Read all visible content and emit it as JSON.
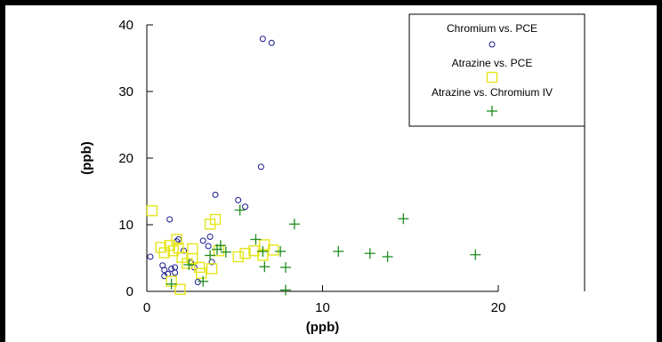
{
  "chart_data": {
    "type": "scatter",
    "title": "",
    "xlabel": "(ppb)",
    "ylabel": "(ppb)",
    "xlim": [
      0,
      20
    ],
    "ylim": [
      0,
      40
    ],
    "x_ticks": [
      "0",
      "10",
      "20"
    ],
    "y_ticks": [
      "0",
      "10",
      "20",
      "30",
      "40"
    ],
    "grid": false,
    "legend_position": "top-right",
    "series": [
      {
        "name": "Chromium vs. PCE",
        "marker": "circle",
        "color": "#1a1a8c",
        "points": [
          [
            0.2,
            5.2
          ],
          [
            0.9,
            3.9
          ],
          [
            1.0,
            3.2
          ],
          [
            1.0,
            2.3
          ],
          [
            1.2,
            2.6
          ],
          [
            1.3,
            10.8
          ],
          [
            1.4,
            3.4
          ],
          [
            1.6,
            3.6
          ],
          [
            1.6,
            2.8
          ],
          [
            1.7,
            7.5
          ],
          [
            1.8,
            7.8
          ],
          [
            2.1,
            6.1
          ],
          [
            2.5,
            4.3
          ],
          [
            2.7,
            3.6
          ],
          [
            2.9,
            1.4
          ],
          [
            3.2,
            7.6
          ],
          [
            3.5,
            6.8
          ],
          [
            3.6,
            8.2
          ],
          [
            3.7,
            4.4
          ],
          [
            3.9,
            14.5
          ],
          [
            5.2,
            13.7
          ],
          [
            5.6,
            12.7
          ],
          [
            6.5,
            18.7
          ],
          [
            6.6,
            37.9
          ],
          [
            7.1,
            37.3
          ]
        ]
      },
      {
        "name": "Atrazine vs. PCE",
        "marker": "square",
        "color": "#e5e51a",
        "points": [
          [
            0.3,
            12.1
          ],
          [
            0.8,
            6.6
          ],
          [
            1.0,
            5.8
          ],
          [
            1.3,
            6.9
          ],
          [
            1.4,
            1.5
          ],
          [
            1.5,
            6.1
          ],
          [
            1.7,
            7.8
          ],
          [
            1.8,
            6.5
          ],
          [
            1.9,
            0.3
          ],
          [
            2.0,
            5.1
          ],
          [
            2.3,
            4.2
          ],
          [
            2.6,
            6.4
          ],
          [
            2.6,
            4.9
          ],
          [
            3.0,
            3.6
          ],
          [
            3.1,
            2.7
          ],
          [
            3.6,
            10.1
          ],
          [
            3.7,
            3.4
          ],
          [
            3.9,
            10.8
          ],
          [
            4.1,
            6.1
          ],
          [
            5.2,
            5.2
          ],
          [
            5.6,
            5.7
          ],
          [
            6.1,
            6.1
          ],
          [
            6.6,
            5.4
          ],
          [
            6.7,
            7.0
          ],
          [
            7.2,
            6.2
          ]
        ]
      },
      {
        "name": "Atrazine vs. Chromium IV",
        "marker": "plus",
        "color": "#1f8c1f",
        "points": [
          [
            1.4,
            1.1
          ],
          [
            2.4,
            4.0
          ],
          [
            3.2,
            1.5
          ],
          [
            3.6,
            5.4
          ],
          [
            4.0,
            6.3
          ],
          [
            4.2,
            6.9
          ],
          [
            4.5,
            5.9
          ],
          [
            5.3,
            12.2
          ],
          [
            6.2,
            7.8
          ],
          [
            6.6,
            6.0
          ],
          [
            6.7,
            3.7
          ],
          [
            7.6,
            6.0
          ],
          [
            7.9,
            0.2
          ],
          [
            7.9,
            3.6
          ],
          [
            8.4,
            10.1
          ],
          [
            10.9,
            6.0
          ],
          [
            12.7,
            5.7
          ],
          [
            13.7,
            5.2
          ],
          [
            14.6,
            10.9
          ],
          [
            18.7,
            5.5
          ]
        ]
      }
    ]
  }
}
